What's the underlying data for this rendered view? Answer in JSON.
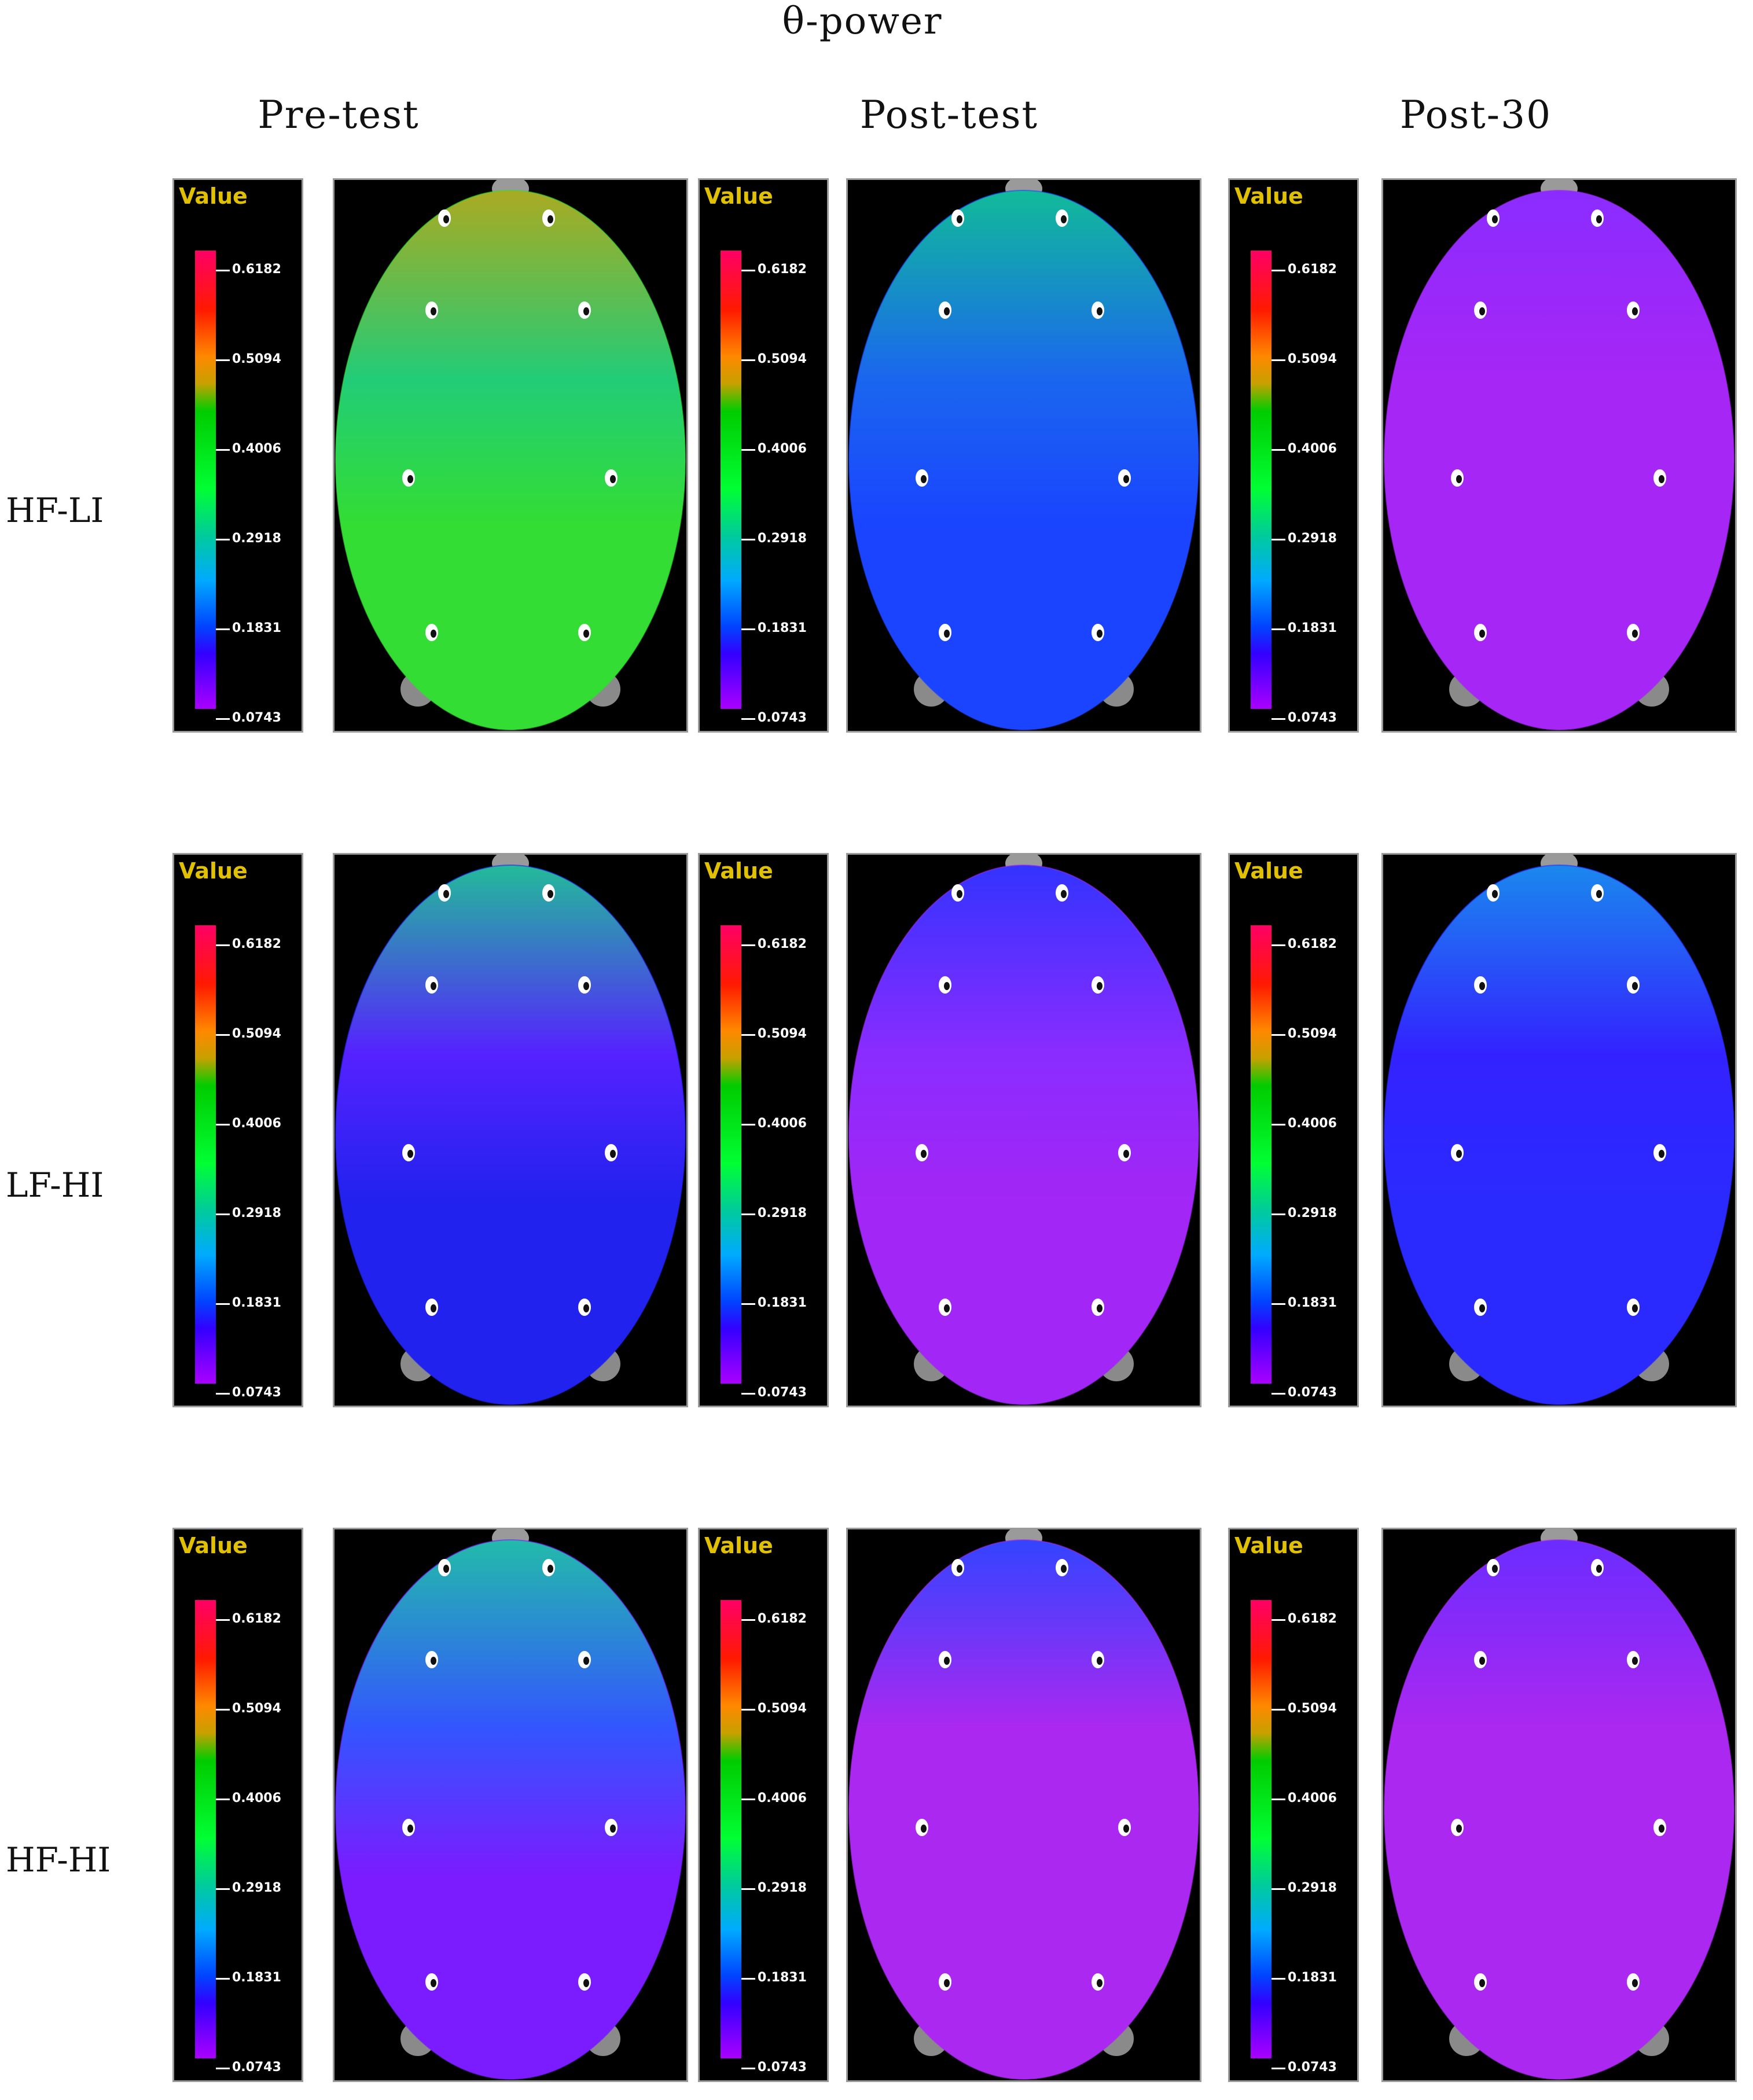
{
  "title": "θ-power",
  "columns": [
    "Pre-test",
    "Post-test",
    "Post-30"
  ],
  "rows": [
    "HF-LI",
    "LF-HI",
    "HF-HI"
  ],
  "colorbar": {
    "label": "Value",
    "ticks": [
      "0.6182",
      "0.5094",
      "0.4006",
      "0.2918",
      "0.1831",
      "0.0743"
    ]
  },
  "maps": [
    [
      {
        "base": "#33dd33",
        "tint": "#aaaa22",
        "band": "#22cc77"
      },
      {
        "base": "#1a44ff",
        "tint": "#11bb99",
        "band": "#1a66ee"
      },
      {
        "base": "#a626f5",
        "tint": "#8a2cff",
        "band": "#a626f5"
      }
    ],
    [
      {
        "base": "#2222ee",
        "tint": "#22bb99",
        "band": "#5522ff"
      },
      {
        "base": "#a226f5",
        "tint": "#3333ff",
        "band": "#8a2cff"
      },
      {
        "base": "#2a2aff",
        "tint": "#1a88ee",
        "band": "#3322ff"
      }
    ],
    [
      {
        "base": "#7a1cff",
        "tint": "#22bbaa",
        "band": "#3355ff"
      },
      {
        "base": "#ab28f0",
        "tint": "#3344ff",
        "band": "#ab28f0"
      },
      {
        "base": "#ab28f0",
        "tint": "#6a2cff",
        "band": "#ab28f0"
      }
    ]
  ]
}
